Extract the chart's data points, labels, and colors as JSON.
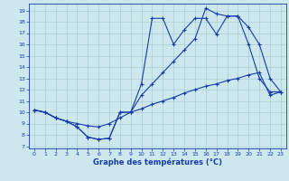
{
  "xlabel": "Graphe des températures (°C)",
  "bg_color": "#cce8ec",
  "grid_color": "#aacdd4",
  "line_color": "#1a3aaa",
  "xlim": [
    0,
    23
  ],
  "ylim": [
    7,
    19
  ],
  "xticks": [
    0,
    1,
    2,
    3,
    4,
    5,
    6,
    7,
    8,
    9,
    10,
    11,
    12,
    13,
    14,
    15,
    16,
    17,
    18,
    19,
    20,
    21,
    22,
    23
  ],
  "yticks": [
    7,
    8,
    9,
    10,
    11,
    12,
    13,
    14,
    15,
    16,
    17,
    18,
    19
  ],
  "line1_x": [
    0,
    1,
    2,
    3,
    4,
    5,
    6,
    7,
    8,
    9,
    10,
    11,
    12,
    13,
    14,
    15,
    16,
    17,
    18,
    19,
    20,
    21,
    22,
    23
  ],
  "line1_y": [
    10.2,
    10.0,
    9.5,
    9.2,
    8.7,
    7.8,
    7.6,
    7.7,
    10.0,
    10.0,
    12.5,
    18.3,
    18.3,
    16.0,
    17.3,
    18.3,
    18.3,
    16.9,
    18.5,
    18.5,
    16.0,
    13.0,
    11.8,
    11.8
  ],
  "line2_x": [
    0,
    1,
    2,
    3,
    4,
    5,
    6,
    7,
    8,
    9,
    10,
    11,
    12,
    13,
    14,
    15,
    16,
    17,
    18,
    19,
    20,
    21,
    22,
    23
  ],
  "line2_y": [
    10.2,
    10.0,
    9.5,
    9.2,
    8.7,
    7.8,
    7.6,
    7.7,
    10.0,
    10.0,
    11.5,
    12.5,
    13.5,
    14.5,
    15.5,
    16.5,
    19.2,
    18.7,
    18.5,
    18.5,
    17.5,
    16.0,
    13.0,
    11.8
  ],
  "line3_x": [
    0,
    1,
    2,
    3,
    4,
    5,
    6,
    7,
    8,
    9,
    10,
    11,
    12,
    13,
    14,
    15,
    16,
    17,
    18,
    19,
    20,
    21,
    22,
    23
  ],
  "line3_y": [
    10.2,
    10.0,
    9.5,
    9.2,
    9.0,
    8.8,
    8.7,
    9.0,
    9.5,
    10.0,
    10.3,
    10.7,
    11.0,
    11.3,
    11.7,
    12.0,
    12.3,
    12.5,
    12.8,
    13.0,
    13.3,
    13.5,
    11.5,
    11.8
  ]
}
